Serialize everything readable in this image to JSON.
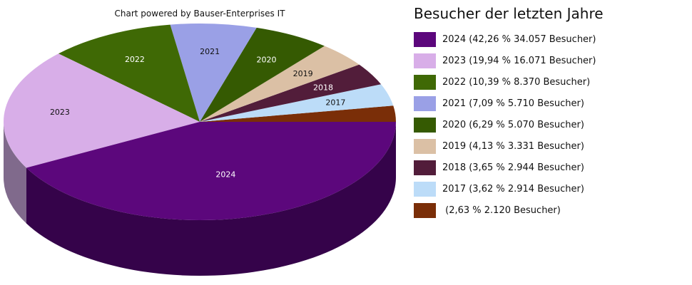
{
  "chart_data": {
    "type": "pie",
    "style": "3d",
    "title": "Besucher der letzten Jahre",
    "subtitle": "Chart powered by Bauser-Enterprises IT",
    "legend_position": "right",
    "slices": [
      {
        "label": "2024",
        "percent": 42.26,
        "value": 34057,
        "color": "#5c077c",
        "side_color": "#35034a",
        "legend": "2024 (42,26 % 34.057 Besucher)",
        "label_color": "#ffffff"
      },
      {
        "label": "2023",
        "percent": 19.94,
        "value": 16071,
        "color": "#d8aee8",
        "side_color": "#806a8c",
        "legend": "2023 (19,94 % 16.071 Besucher)",
        "label_color": "#111111"
      },
      {
        "label": "2022",
        "percent": 10.39,
        "value": 8370,
        "color": "#3f6905",
        "side_color": "#274203",
        "legend": "2022 (10,39 % 8.370 Besucher)",
        "label_color": "#ffffff"
      },
      {
        "label": "2021",
        "percent": 7.09,
        "value": 5710,
        "color": "#9aa0e6",
        "side_color": "#5e628c",
        "legend": "2021 (7,09 % 5.710 Besucher)",
        "label_color": "#111111"
      },
      {
        "label": "2020",
        "percent": 6.29,
        "value": 5070,
        "color": "#355a02",
        "side_color": "#213801",
        "legend": "2020 (6,29 % 5.070 Besucher)",
        "label_color": "#ffffff"
      },
      {
        "label": "2019",
        "percent": 4.13,
        "value": 3331,
        "color": "#dbc0a5",
        "side_color": "#8a7866",
        "legend": "2019 (4,13 % 3.331 Besucher)",
        "label_color": "#111111"
      },
      {
        "label": "2018",
        "percent": 3.65,
        "value": 2944,
        "color": "#521d3a",
        "side_color": "#321124",
        "legend": "2018 (3,65 % 2.944 Besucher)",
        "label_color": "#ffffff"
      },
      {
        "label": "2017",
        "percent": 3.62,
        "value": 2914,
        "color": "#bcdcf8",
        "side_color": "#75899a",
        "legend": "2017 (3,62 % 2.914 Besucher)",
        "label_color": "#111111"
      },
      {
        "label": "",
        "percent": 2.63,
        "value": 2120,
        "color": "#7a2e08",
        "side_color": "#4b1c05",
        "legend": " (2,63 % 2.120 Besucher)",
        "label_color": "#ffffff"
      }
    ]
  },
  "header": {
    "powered_by": "Chart powered by Bauser-Enterprises IT"
  },
  "legend": {
    "title": "Besucher der letzten Jahre",
    "items": [
      {
        "text": "2024 (42,26 % 34.057 Besucher)",
        "color": "#5c077c"
      },
      {
        "text": "2023 (19,94 % 16.071 Besucher)",
        "color": "#d8aee8"
      },
      {
        "text": "2022 (10,39 % 8.370 Besucher)",
        "color": "#3f6905"
      },
      {
        "text": "2021 (7,09 % 5.710 Besucher)",
        "color": "#9aa0e6"
      },
      {
        "text": "2020 (6,29 % 5.070 Besucher)",
        "color": "#355a02"
      },
      {
        "text": "2019 (4,13 % 3.331 Besucher)",
        "color": "#dbc0a5"
      },
      {
        "text": "2018 (3,65 % 2.944 Besucher)",
        "color": "#521d3a"
      },
      {
        "text": "2017 (3,62 % 2.914 Besucher)",
        "color": "#bcdcf8"
      },
      {
        "text": " (2,63 % 2.120 Besucher)",
        "color": "#7a2e08"
      }
    ]
  }
}
